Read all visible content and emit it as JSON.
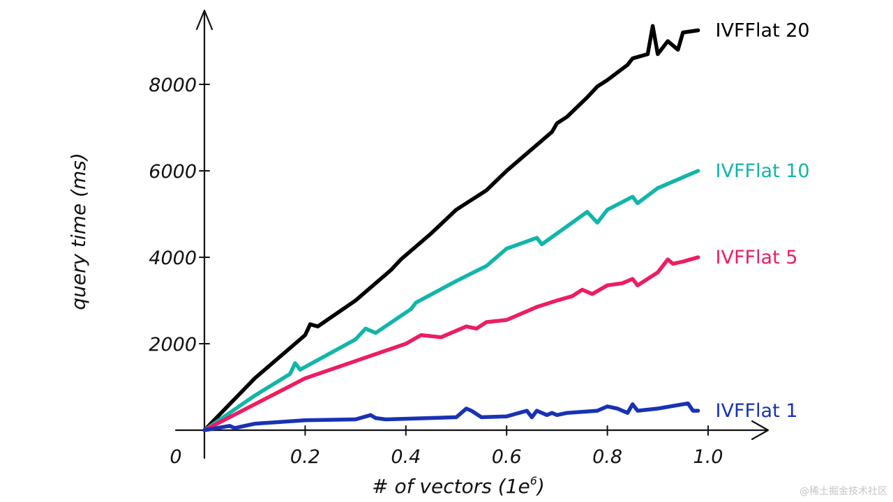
{
  "chart_data": {
    "type": "line",
    "title": "",
    "xlabel": "# of vectors (1e",
    "xlabel_sup": "6",
    "xlabel_close": ")",
    "ylabel": "query time (ms)",
    "origin_label": "0",
    "xlim": [
      0,
      1.1
    ],
    "ylim": [
      0,
      9600
    ],
    "x_ticks": [
      0.2,
      0.4,
      0.6,
      0.8,
      1.0
    ],
    "x_tick_labels": [
      "0.2",
      "0.4",
      "0.6",
      "0.8",
      "1.0"
    ],
    "y_ticks": [
      2000,
      4000,
      6000,
      8000
    ],
    "y_tick_labels": [
      "2000",
      "4000",
      "6000",
      "8000"
    ],
    "grid": false,
    "legend_placement": "right-end-of-lines",
    "series": [
      {
        "name": "IVFFlat 20",
        "color": "#000000",
        "x": [
          0,
          0.05,
          0.1,
          0.15,
          0.2,
          0.21,
          0.225,
          0.3,
          0.37,
          0.39,
          0.45,
          0.5,
          0.52,
          0.56,
          0.6,
          0.65,
          0.69,
          0.7,
          0.72,
          0.76,
          0.78,
          0.8,
          0.84,
          0.85,
          0.88,
          0.89,
          0.9,
          0.92,
          0.94,
          0.95,
          0.98
        ],
        "values": [
          0,
          600,
          1200,
          1700,
          2200,
          2450,
          2400,
          3000,
          3700,
          3950,
          4550,
          5100,
          5250,
          5550,
          6000,
          6500,
          6900,
          7100,
          7250,
          7700,
          7950,
          8100,
          8450,
          8600,
          8700,
          9350,
          8700,
          9000,
          8800,
          9200,
          9250
        ]
      },
      {
        "name": "IVFFlat 10",
        "color": "#12b5aa",
        "x": [
          0,
          0.1,
          0.17,
          0.18,
          0.19,
          0.3,
          0.32,
          0.34,
          0.41,
          0.42,
          0.5,
          0.56,
          0.6,
          0.66,
          0.67,
          0.7,
          0.76,
          0.78,
          0.8,
          0.85,
          0.86,
          0.9,
          0.95,
          0.98
        ],
        "values": [
          0,
          800,
          1300,
          1550,
          1400,
          2100,
          2350,
          2250,
          2800,
          2950,
          3450,
          3800,
          4200,
          4450,
          4300,
          4550,
          5050,
          4800,
          5100,
          5400,
          5250,
          5600,
          5850,
          6000
        ]
      },
      {
        "name": "IVFFlat 5",
        "color": "#ec1d63",
        "x": [
          0,
          0.05,
          0.1,
          0.2,
          0.3,
          0.4,
          0.43,
          0.47,
          0.52,
          0.54,
          0.56,
          0.6,
          0.66,
          0.7,
          0.73,
          0.75,
          0.77,
          0.8,
          0.83,
          0.85,
          0.86,
          0.9,
          0.92,
          0.93,
          0.95,
          0.98
        ],
        "values": [
          0,
          300,
          600,
          1200,
          1600,
          2000,
          2200,
          2150,
          2400,
          2350,
          2500,
          2550,
          2850,
          3000,
          3100,
          3250,
          3150,
          3350,
          3400,
          3500,
          3350,
          3650,
          3950,
          3850,
          3900,
          4000
        ]
      },
      {
        "name": "IVFFlat 1",
        "color": "#1932b4",
        "x": [
          0,
          0.05,
          0.06,
          0.1,
          0.2,
          0.3,
          0.33,
          0.34,
          0.36,
          0.5,
          0.52,
          0.53,
          0.55,
          0.6,
          0.64,
          0.65,
          0.66,
          0.68,
          0.69,
          0.7,
          0.72,
          0.78,
          0.8,
          0.82,
          0.84,
          0.85,
          0.86,
          0.9,
          0.96,
          0.97,
          0.98
        ],
        "values": [
          0,
          100,
          50,
          150,
          230,
          250,
          350,
          280,
          250,
          300,
          500,
          450,
          300,
          320,
          450,
          300,
          450,
          350,
          400,
          350,
          400,
          450,
          550,
          500,
          400,
          600,
          450,
          500,
          620,
          450,
          450
        ]
      }
    ]
  },
  "watermark": "@稀土掘金技术社区"
}
